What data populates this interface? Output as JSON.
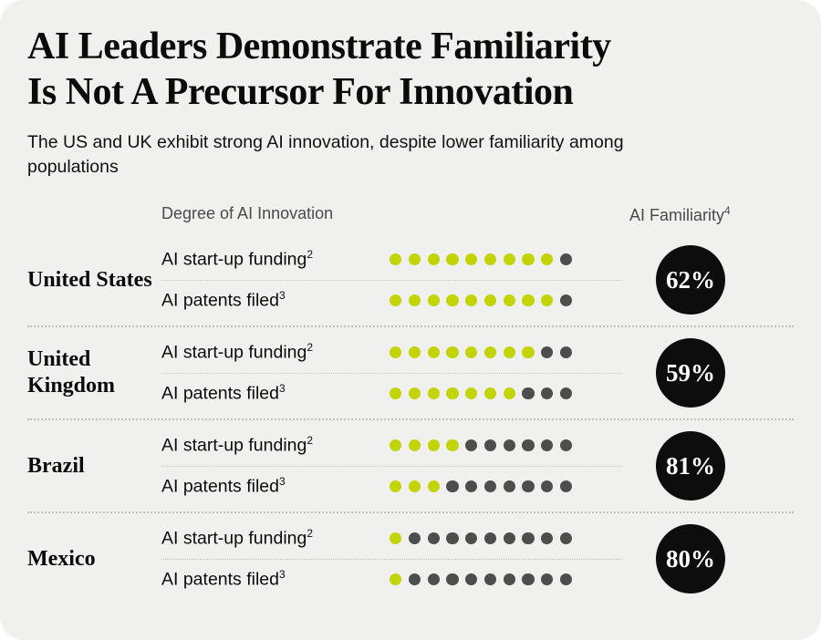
{
  "colors": {
    "panel_bg": "#f0f0ee",
    "dot_filled": "#c2d306",
    "dot_empty": "#4d4d4d",
    "badge_bg": "#0d0d0d",
    "badge_text": "#ffffff",
    "header_gray": "#4a4a4a"
  },
  "title": {
    "line1": "AI Leaders Demonstrate Familiarity",
    "line2": "Is Not A Precursor For Innovation"
  },
  "subtitle": "The US and UK exhibit strong AI innovation, despite lower familiarity among populations",
  "columns": {
    "innovation": "Degree of AI Innovation",
    "familiarity": "AI Familiarity",
    "familiarity_superscript": "4"
  },
  "chart_data": {
    "type": "dot-matrix",
    "dots_per_row": 10,
    "metrics": [
      {
        "label": "AI start-up funding",
        "superscript": "2"
      },
      {
        "label": "AI patents filed",
        "superscript": "3"
      }
    ],
    "legend_note": "filled green dots = degree of AI innovation out of 10; black badge = AI familiarity percentage",
    "countries": [
      {
        "name": "United States",
        "startup_funding_filled": 9,
        "patents_filed_filled": 9,
        "familiarity": "62%"
      },
      {
        "name": "United Kingdom",
        "startup_funding_filled": 8,
        "patents_filed_filled": 7,
        "familiarity": "59%"
      },
      {
        "name": "Brazil",
        "startup_funding_filled": 4,
        "patents_filed_filled": 3,
        "familiarity": "81%"
      },
      {
        "name": "Mexico",
        "startup_funding_filled": 1,
        "patents_filed_filled": 1,
        "familiarity": "80%"
      }
    ]
  }
}
